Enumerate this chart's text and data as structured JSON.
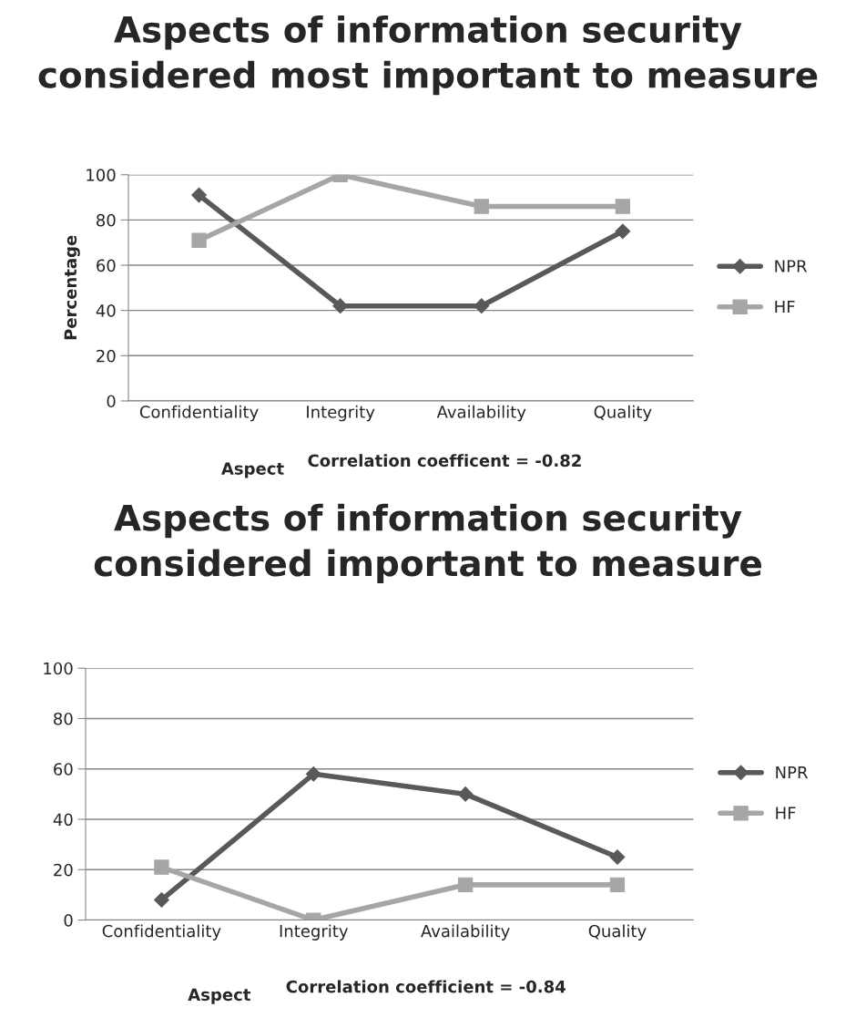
{
  "chart_data": [
    {
      "type": "line",
      "title": "Aspects of information security considered most important to measure",
      "xlabel": "Aspect",
      "ylabel": "Percentage",
      "annotations": [
        "Correlation coefficent = -0.82"
      ],
      "categories": [
        "Confidentiality",
        "Integrity",
        "Availability",
        "Quality"
      ],
      "ylim": [
        0,
        100
      ],
      "yticks": [
        0,
        20,
        40,
        60,
        80,
        100
      ],
      "grid": "y",
      "legend": "right",
      "series": [
        {
          "name": "NPR",
          "color": "#595959",
          "marker": "diamond",
          "values": [
            91,
            42,
            42,
            75
          ]
        },
        {
          "name": "HF",
          "color": "#a6a6a6",
          "marker": "square",
          "values": [
            71,
            100,
            86,
            86
          ]
        }
      ]
    },
    {
      "type": "line",
      "title": "Aspects of information security considered important to measure",
      "xlabel": "Aspect",
      "annotations": [
        "Correlation coefficient = -0.84"
      ],
      "categories": [
        "Confidentiality",
        "Integrity",
        "Availability",
        "Quality"
      ],
      "ylim": [
        0,
        100
      ],
      "yticks": [
        0,
        20,
        40,
        60,
        80,
        100
      ],
      "grid": "y",
      "legend": "right",
      "series": [
        {
          "name": "NPR",
          "color": "#595959",
          "marker": "diamond",
          "values": [
            8,
            58,
            50,
            25
          ]
        },
        {
          "name": "HF",
          "color": "#a6a6a6",
          "marker": "square",
          "values": [
            21,
            0,
            14,
            14
          ]
        }
      ]
    }
  ]
}
